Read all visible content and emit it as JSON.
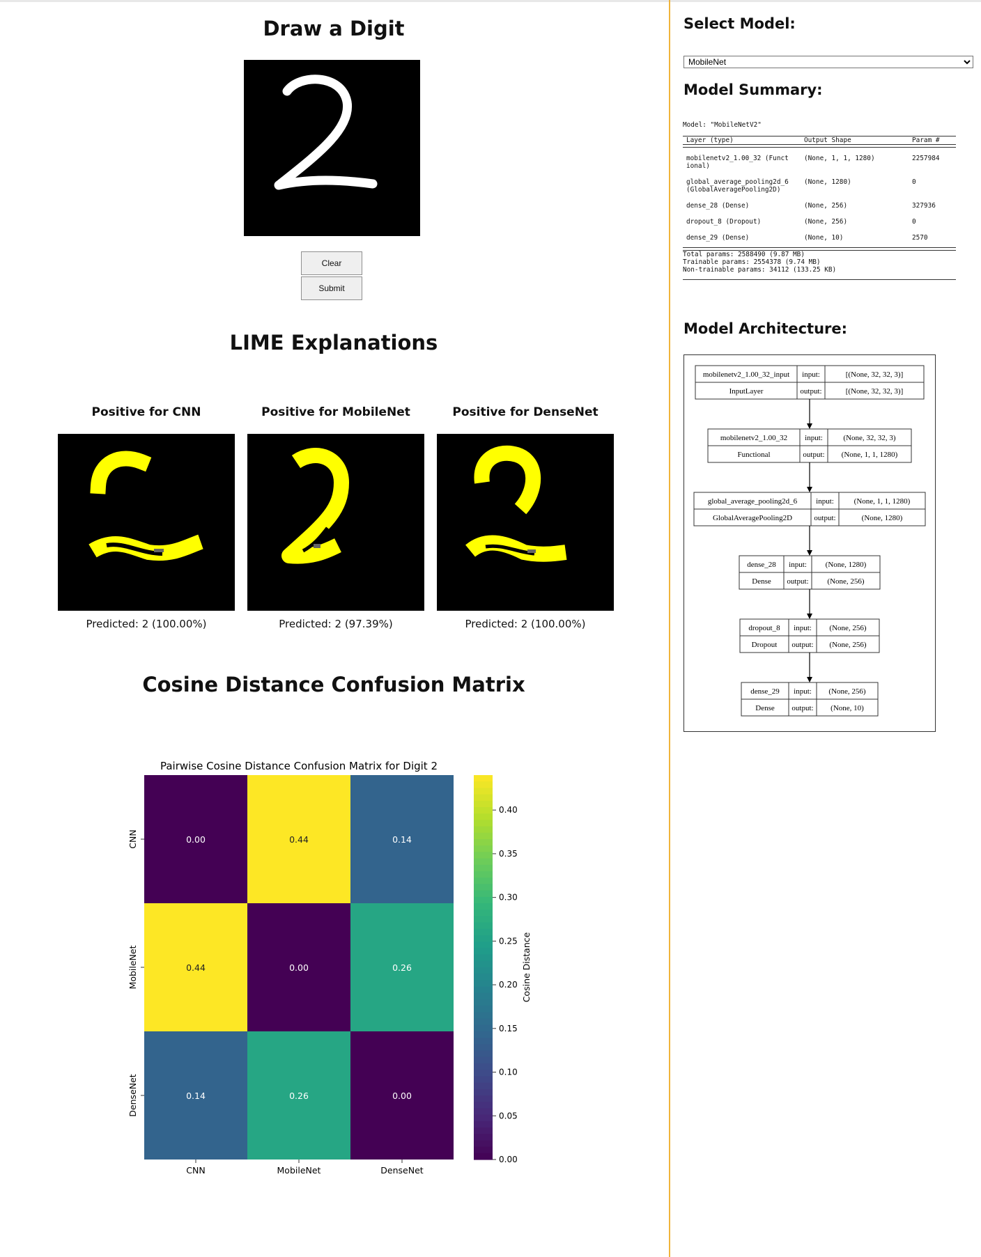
{
  "draw": {
    "title": "Draw a Digit",
    "clear_label": "Clear",
    "submit_label": "Submit"
  },
  "lime": {
    "title": "LIME Explanations",
    "panels": [
      {
        "title": "Positive for CNN",
        "prediction": "Predicted: 2 (100.00%)"
      },
      {
        "title": "Positive for MobileNet",
        "prediction": "Predicted: 2 (97.39%)"
      },
      {
        "title": "Positive for DenseNet",
        "prediction": "Predicted: 2 (100.00%)"
      }
    ]
  },
  "cosine": {
    "title": "Cosine Distance Confusion Matrix"
  },
  "chart_data": {
    "type": "heatmap",
    "title": "Pairwise Cosine Distance Confusion Matrix for Digit 2",
    "x_categories": [
      "CNN",
      "MobileNet",
      "DenseNet"
    ],
    "y_categories": [
      "CNN",
      "MobileNet",
      "DenseNet"
    ],
    "values": [
      [
        0.0,
        0.44,
        0.14
      ],
      [
        0.44,
        0.0,
        0.26
      ],
      [
        0.14,
        0.26,
        0.0
      ]
    ],
    "value_labels": [
      [
        "0.00",
        "0.44",
        "0.14"
      ],
      [
        "0.44",
        "0.00",
        "0.26"
      ],
      [
        "0.14",
        "0.26",
        "0.00"
      ]
    ],
    "colorbar_label": "Cosine Distance",
    "colorbar_range": [
      0,
      0.44
    ],
    "colorbar_ticks": [
      "0.00",
      "0.05",
      "0.10",
      "0.15",
      "0.20",
      "0.25",
      "0.30",
      "0.35",
      "0.40"
    ],
    "colormap": "viridis"
  },
  "sidebar": {
    "select_title": "Select Model:",
    "selected_model": "MobileNet",
    "summary_title": "Model Summary:",
    "summary": {
      "model_line": "Model: \"MobileNetV2\"",
      "headers": [
        "Layer (type)",
        "Output Shape",
        "Param #"
      ],
      "rows": [
        {
          "layer": "mobilenetv2_1.00_32 (Funct",
          "layer2": "ional)",
          "shape": "(None, 1, 1, 1280)",
          "params": "2257984"
        },
        {
          "layer": "global_average_pooling2d_6",
          "layer2": " (GlobalAveragePooling2D)",
          "shape": "(None, 1280)",
          "params": "0"
        },
        {
          "layer": "dense_28 (Dense)",
          "layer2": "",
          "shape": "(None, 256)",
          "params": "327936"
        },
        {
          "layer": "dropout_8 (Dropout)",
          "layer2": "",
          "shape": "(None, 256)",
          "params": "0"
        },
        {
          "layer": "dense_29 (Dense)",
          "layer2": "",
          "shape": "(None, 10)",
          "params": "2570"
        }
      ],
      "total": "Total params: 2588490 (9.87 MB)",
      "trainable": "Trainable params: 2554378 (9.74 MB)",
      "non_trainable": "Non-trainable params: 34112 (133.25 KB)"
    },
    "arch_title": "Model Architecture:",
    "arch_nodes": [
      {
        "name": "mobilenetv2_1.00_32_input",
        "type": "InputLayer",
        "input": "[(None, 32, 32, 3)]",
        "output": "[(None, 32, 32, 3)]"
      },
      {
        "name": "mobilenetv2_1.00_32",
        "type": "Functional",
        "input": "(None, 32, 32, 3)",
        "output": "(None, 1, 1, 1280)"
      },
      {
        "name": "global_average_pooling2d_6",
        "type": "GlobalAveragePooling2D",
        "input": "(None, 1, 1, 1280)",
        "output": "(None, 1280)"
      },
      {
        "name": "dense_28",
        "type": "Dense",
        "input": "(None, 1280)",
        "output": "(None, 256)"
      },
      {
        "name": "dropout_8",
        "type": "Dropout",
        "input": "(None, 256)",
        "output": "(None, 256)"
      },
      {
        "name": "dense_29",
        "type": "Dense",
        "input": "(None, 256)",
        "output": "(None, 10)"
      }
    ],
    "arch_port_labels": {
      "input": "input:",
      "output": "output:"
    }
  }
}
